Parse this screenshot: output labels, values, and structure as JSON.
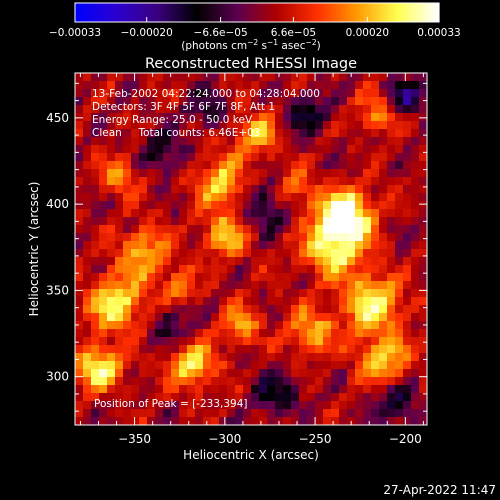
{
  "colorbar": {
    "tick_labels": [
      "−0.00033",
      "−0.00020",
      "−6.6e−05",
      "6.6e−05",
      "0.00020",
      "0.00033"
    ],
    "tick_values": [
      -0.00033,
      -0.0002,
      -6.6e-05,
      6.6e-05,
      0.0002,
      0.00033
    ],
    "range": [
      -0.00033,
      0.00033
    ],
    "unit_prefix": "(photons cm",
    "unit_exp1": "−2",
    "unit_mid": " s",
    "unit_exp2": "−1",
    "unit_mid2": " asec",
    "unit_exp3": "−2",
    "unit_suffix": ")",
    "colormap": [
      "#0000ff",
      "#2b00d0",
      "#3b0080",
      "#000000",
      "#5a0050",
      "#b00000",
      "#ff3000",
      "#ff9a00",
      "#ffff50",
      "#ffffff"
    ]
  },
  "footer": {
    "timestamp": "27-Apr-2022 11:47"
  },
  "chart_data": {
    "type": "heatmap",
    "title": "Reconstructed RHESSI Image",
    "xlabel": "Heliocentric X (arcsec)",
    "ylabel": "Heliocentric Y (arcsec)",
    "xlim": [
      -383,
      -188
    ],
    "ylim": [
      272,
      476
    ],
    "x_ticks": [
      -350,
      -300,
      -250,
      -200
    ],
    "y_ticks": [
      300,
      350,
      400,
      450
    ],
    "x_tick_labels": [
      "−350",
      "−300",
      "−250",
      "−200"
    ],
    "y_tick_labels": [
      "300",
      "350",
      "400",
      "450"
    ],
    "annotations": [
      "13-Feb-2002 04:22:24.000 to 04:28:04.000",
      "Detectors: 3F 4F 5F 6F 7F 8F, Att 1",
      "Energy Range: 25.0 - 50.0 keV",
      "Clean     Total counts: 6.46E+03"
    ],
    "peak_label": "Position of Peak = [-233,394]",
    "peak": {
      "x": -233,
      "y": 394
    },
    "bright_regions": [
      {
        "x": -233,
        "y": 394,
        "sigma": 10,
        "amp": 1.0
      },
      {
        "x": -240,
        "y": 375,
        "sigma": 12,
        "amp": 0.75
      },
      {
        "x": -218,
        "y": 342,
        "sigma": 12,
        "amp": 0.7
      },
      {
        "x": -252,
        "y": 326,
        "sigma": 9,
        "amp": 0.55
      },
      {
        "x": -212,
        "y": 310,
        "sigma": 10,
        "amp": 0.6
      },
      {
        "x": -360,
        "y": 342,
        "sigma": 11,
        "amp": 0.72
      },
      {
        "x": -345,
        "y": 372,
        "sigma": 10,
        "amp": 0.55
      },
      {
        "x": -370,
        "y": 305,
        "sigma": 9,
        "amp": 0.75
      },
      {
        "x": -318,
        "y": 307,
        "sigma": 9,
        "amp": 0.7
      },
      {
        "x": -292,
        "y": 330,
        "sigma": 8,
        "amp": 0.5
      },
      {
        "x": -300,
        "y": 382,
        "sigma": 9,
        "amp": 0.55
      },
      {
        "x": -302,
        "y": 412,
        "sigma": 10,
        "amp": 0.6
      },
      {
        "x": -262,
        "y": 408,
        "sigma": 8,
        "amp": 0.5
      },
      {
        "x": -283,
        "y": 440,
        "sigma": 9,
        "amp": 0.55
      },
      {
        "x": -215,
        "y": 452,
        "sigma": 8,
        "amp": 0.45
      },
      {
        "x": -358,
        "y": 416,
        "sigma": 8,
        "amp": 0.45
      },
      {
        "x": -325,
        "y": 352,
        "sigma": 7,
        "amp": 0.4
      }
    ],
    "dark_regions": [
      {
        "x": -275,
        "y": 400,
        "sigma": 10,
        "amp": 0.45
      },
      {
        "x": -335,
        "y": 430,
        "sigma": 9,
        "amp": 0.4
      },
      {
        "x": -255,
        "y": 452,
        "sigma": 8,
        "amp": 0.5
      },
      {
        "x": -200,
        "y": 462,
        "sigma": 7,
        "amp": 0.6
      },
      {
        "x": -272,
        "y": 290,
        "sigma": 9,
        "amp": 0.45
      },
      {
        "x": -205,
        "y": 285,
        "sigma": 8,
        "amp": 0.5
      },
      {
        "x": -330,
        "y": 330,
        "sigma": 8,
        "amp": 0.35
      },
      {
        "x": -310,
        "y": 455,
        "sigma": 8,
        "amp": 0.35
      }
    ]
  }
}
